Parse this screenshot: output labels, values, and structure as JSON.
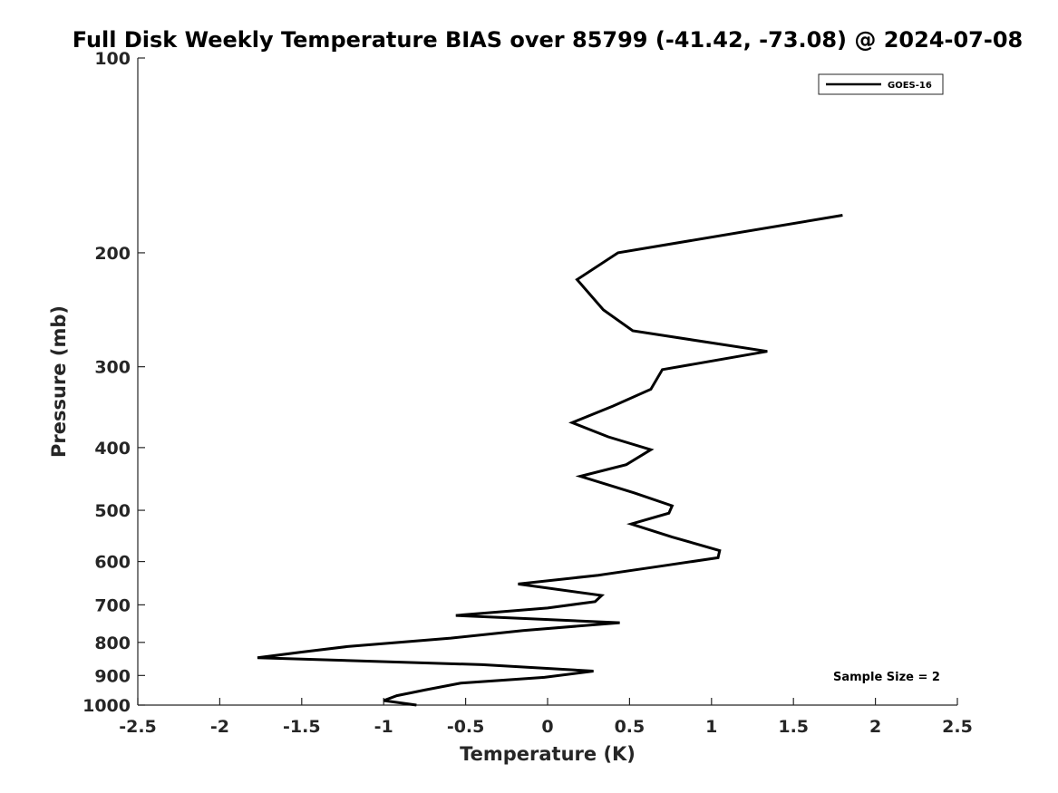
{
  "chart_data": {
    "type": "line",
    "title": "Full Disk Weekly Temperature BIAS over 85799 (-41.42, -73.08) @ 2024-07-08",
    "xlabel": "Temperature (K)",
    "ylabel": "Pressure (mb)",
    "xlim": [
      -2.5,
      2.5
    ],
    "ylim": [
      100,
      1000
    ],
    "y_scale": "log",
    "y_reversed": true,
    "x_ticks": [
      "-2.5",
      "-2",
      "-1.5",
      "-1",
      "-0.5",
      "0",
      "0.5",
      "1",
      "1.5",
      "2",
      "2.5"
    ],
    "y_ticks": [
      "100",
      "200",
      "300",
      "400",
      "500",
      "600",
      "700",
      "800",
      "900",
      "1000"
    ],
    "grid": false,
    "legend": {
      "position": "top-right",
      "entries": [
        "GOES-16"
      ]
    },
    "annotation": "Sample Size = 2",
    "series": [
      {
        "name": "GOES-16",
        "color": "#000000",
        "points": [
          {
            "x": 1.8,
            "y": 175
          },
          {
            "x": 0.43,
            "y": 200
          },
          {
            "x": 0.18,
            "y": 220
          },
          {
            "x": 0.34,
            "y": 245
          },
          {
            "x": 0.52,
            "y": 264
          },
          {
            "x": 1.34,
            "y": 284
          },
          {
            "x": 0.7,
            "y": 303
          },
          {
            "x": 0.63,
            "y": 325
          },
          {
            "x": 0.4,
            "y": 345
          },
          {
            "x": 0.15,
            "y": 366
          },
          {
            "x": 0.37,
            "y": 385
          },
          {
            "x": 0.63,
            "y": 403
          },
          {
            "x": 0.48,
            "y": 425
          },
          {
            "x": 0.2,
            "y": 443
          },
          {
            "x": 0.53,
            "y": 470
          },
          {
            "x": 0.76,
            "y": 492
          },
          {
            "x": 0.74,
            "y": 505
          },
          {
            "x": 0.51,
            "y": 525
          },
          {
            "x": 0.76,
            "y": 550
          },
          {
            "x": 1.05,
            "y": 577
          },
          {
            "x": 1.04,
            "y": 592
          },
          {
            "x": 0.69,
            "y": 610
          },
          {
            "x": 0.31,
            "y": 630
          },
          {
            "x": -0.18,
            "y": 650
          },
          {
            "x": 0.33,
            "y": 677
          },
          {
            "x": 0.29,
            "y": 692
          },
          {
            "x": 0.0,
            "y": 708
          },
          {
            "x": -0.56,
            "y": 727
          },
          {
            "x": 0.44,
            "y": 746
          },
          {
            "x": -0.15,
            "y": 767
          },
          {
            "x": -0.59,
            "y": 788
          },
          {
            "x": -1.22,
            "y": 812
          },
          {
            "x": -1.5,
            "y": 828
          },
          {
            "x": -1.77,
            "y": 845
          },
          {
            "x": -0.4,
            "y": 866
          },
          {
            "x": 0.28,
            "y": 886
          },
          {
            "x": -0.02,
            "y": 906
          },
          {
            "x": -0.53,
            "y": 925
          },
          {
            "x": -0.75,
            "y": 948
          },
          {
            "x": -0.92,
            "y": 967
          },
          {
            "x": -1.0,
            "y": 984
          },
          {
            "x": -0.8,
            "y": 1000
          }
        ]
      }
    ]
  }
}
